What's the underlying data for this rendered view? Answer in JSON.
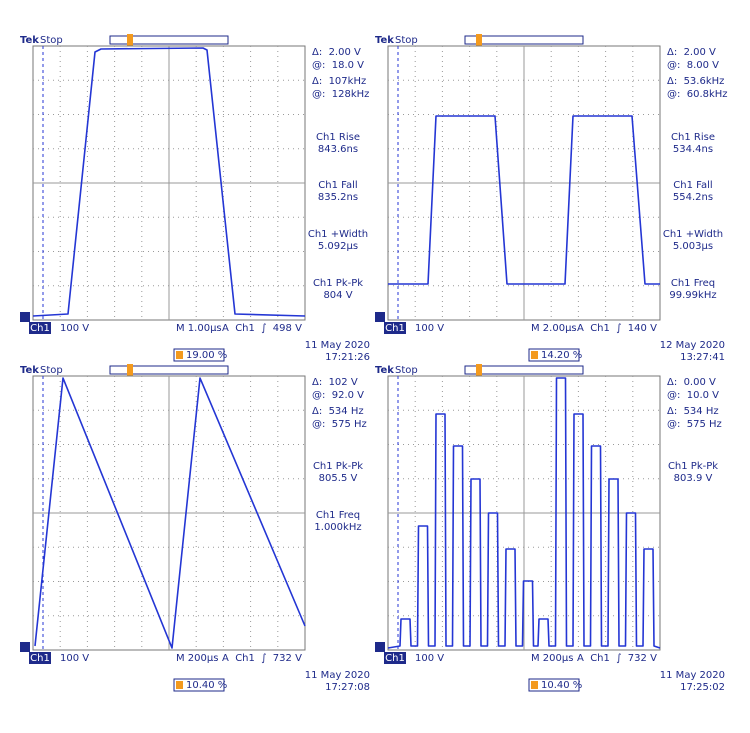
{
  "panels": [
    {
      "brand": "Tek",
      "status": "Stop",
      "cursors": [
        "Δ:  2.00 V",
        "@:  18.0 V",
        "Δ:  107kHz",
        "@:  128kHz"
      ],
      "measurements": [
        {
          "label": "Ch1 Rise",
          "value": "843.6ns"
        },
        {
          "label": "Ch1 Fall",
          "value": "835.2ns"
        },
        {
          "label": "Ch1 +Width",
          "value": "5.092µs"
        },
        {
          "label": "Ch1 Pk-Pk",
          "value": "804 V"
        }
      ],
      "channel": "Ch1",
      "scale": "100 V",
      "timebase": "M 1.00µs",
      "trigger": "A  Ch1  ∫  498 V",
      "date": "11 May 2020",
      "time": "17:21:26",
      "trigger_position": "19.00 %"
    },
    {
      "brand": "Tek",
      "status": "Stop",
      "cursors": [
        "Δ:  2.00 V",
        "@:  8.00 V",
        "Δ:  53.6kHz",
        "@:  60.8kHz"
      ],
      "measurements": [
        {
          "label": "Ch1 Rise",
          "value": "534.4ns"
        },
        {
          "label": "Ch1 Fall",
          "value": "554.2ns"
        },
        {
          "label": "Ch1 +Width",
          "value": "5.003µs"
        },
        {
          "label": "Ch1 Freq",
          "value": "99.99kHz"
        }
      ],
      "channel": "Ch1",
      "scale": "100 V",
      "timebase": "M 2.00µs",
      "trigger": "A  Ch1  ∫  140 V",
      "date": "12 May 2020",
      "time": "13:27:41",
      "trigger_position": "14.20 %"
    },
    {
      "brand": "Tek",
      "status": "Stop",
      "cursors": [
        "Δ:  102 V",
        "@:  92.0 V",
        "Δ:  534 Hz",
        "@:  575 Hz"
      ],
      "measurements": [
        {
          "label": "Ch1 Pk-Pk",
          "value": "805.5 V"
        },
        {
          "label": "Ch1 Freq",
          "value": "1.000kHz"
        }
      ],
      "channel": "Ch1",
      "scale": "100 V",
      "timebase": "M 200µs",
      "trigger": "A  Ch1  ∫  732 V",
      "date": "11 May 2020",
      "time": "17:27:08",
      "trigger_position": "10.40 %"
    },
    {
      "brand": "Tek",
      "status": "Stop",
      "cursors": [
        "Δ:  0.00 V",
        "@:  10.0 V",
        "Δ:  534 Hz",
        "@:  575 Hz"
      ],
      "measurements": [
        {
          "label": "Ch1 Pk-Pk",
          "value": "803.9 V"
        }
      ],
      "channel": "Ch1",
      "scale": "100 V",
      "timebase": "M 200µs",
      "trigger": "A  Ch1  ∫  732 V",
      "date": "11 May 2020",
      "time": "17:25:02",
      "trigger_position": "10.40 %"
    }
  ]
}
